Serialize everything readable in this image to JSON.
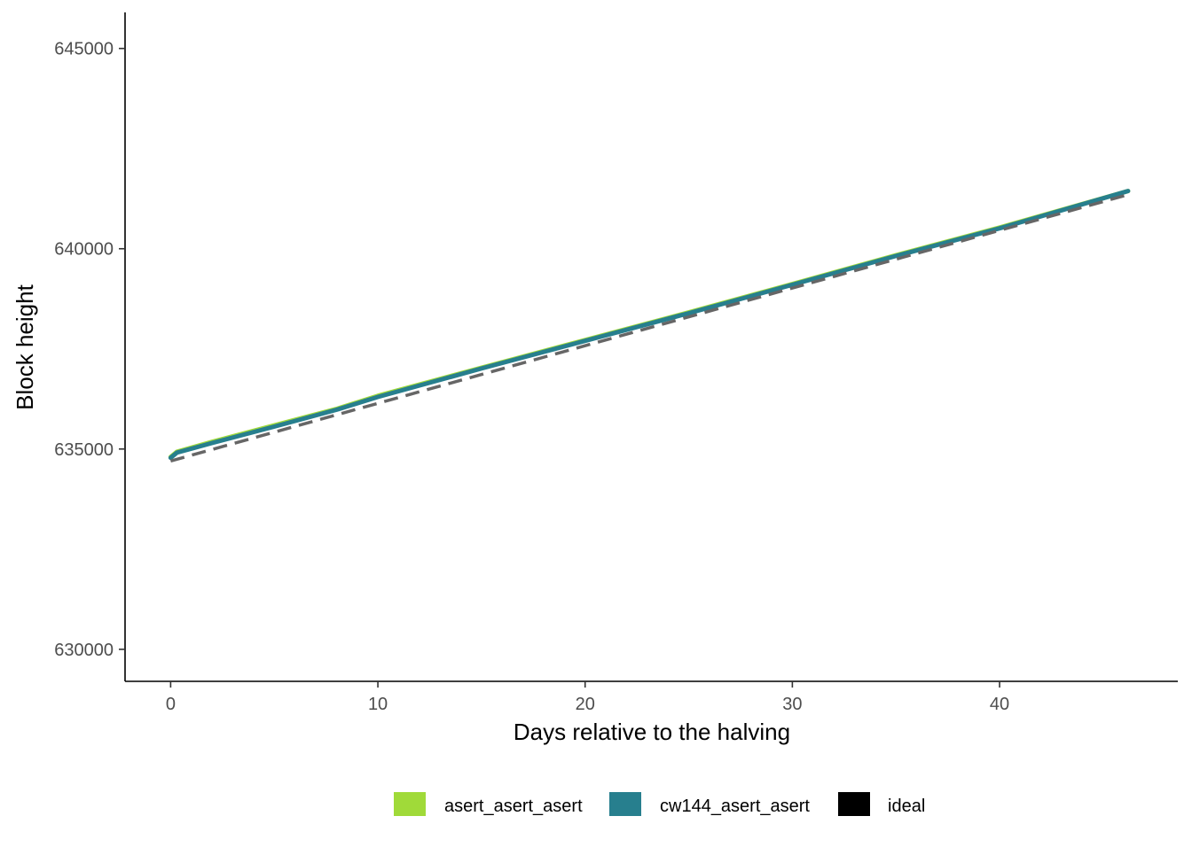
{
  "chart_data": {
    "type": "line",
    "title": "",
    "xlabel": "Days relative to the halving",
    "ylabel": "Block height",
    "xlim": [
      -2.2,
      48.6
    ],
    "ylim": [
      629200,
      645900
    ],
    "x_ticks": [
      0,
      10,
      20,
      30,
      40
    ],
    "x_tick_labels": [
      "0",
      "10",
      "20",
      "30",
      "40"
    ],
    "y_ticks": [
      630000,
      635000,
      640000,
      645000
    ],
    "y_tick_labels": [
      "630000",
      "635000",
      "640000",
      "645000"
    ],
    "grid": false,
    "legend_position": "bottom",
    "series": [
      {
        "name": "asert_asert_asert",
        "color": "#A0DA39",
        "dash": "solid",
        "x": [
          0,
          0.3,
          2,
          5,
          8,
          10,
          15,
          20,
          25,
          30,
          35,
          40,
          46.2
        ],
        "y": [
          634800,
          634930,
          635180,
          635590,
          636000,
          636330,
          637030,
          637720,
          638410,
          639120,
          639840,
          640530,
          641440
        ]
      },
      {
        "name": "cw144_asert_asert",
        "color": "#277F8E",
        "dash": "solid",
        "x": [
          0,
          0.3,
          2,
          5,
          8,
          10,
          15,
          20,
          25,
          30,
          35,
          40,
          46.2
        ],
        "y": [
          634780,
          634910,
          635150,
          635560,
          635980,
          636300,
          637010,
          637700,
          638390,
          639100,
          639820,
          640510,
          641440
        ]
      },
      {
        "name": "ideal",
        "color": "#000000",
        "line_color": "#666666",
        "dash": "dashed",
        "x": [
          0,
          46.2
        ],
        "y": [
          634700,
          641350
        ]
      }
    ]
  }
}
